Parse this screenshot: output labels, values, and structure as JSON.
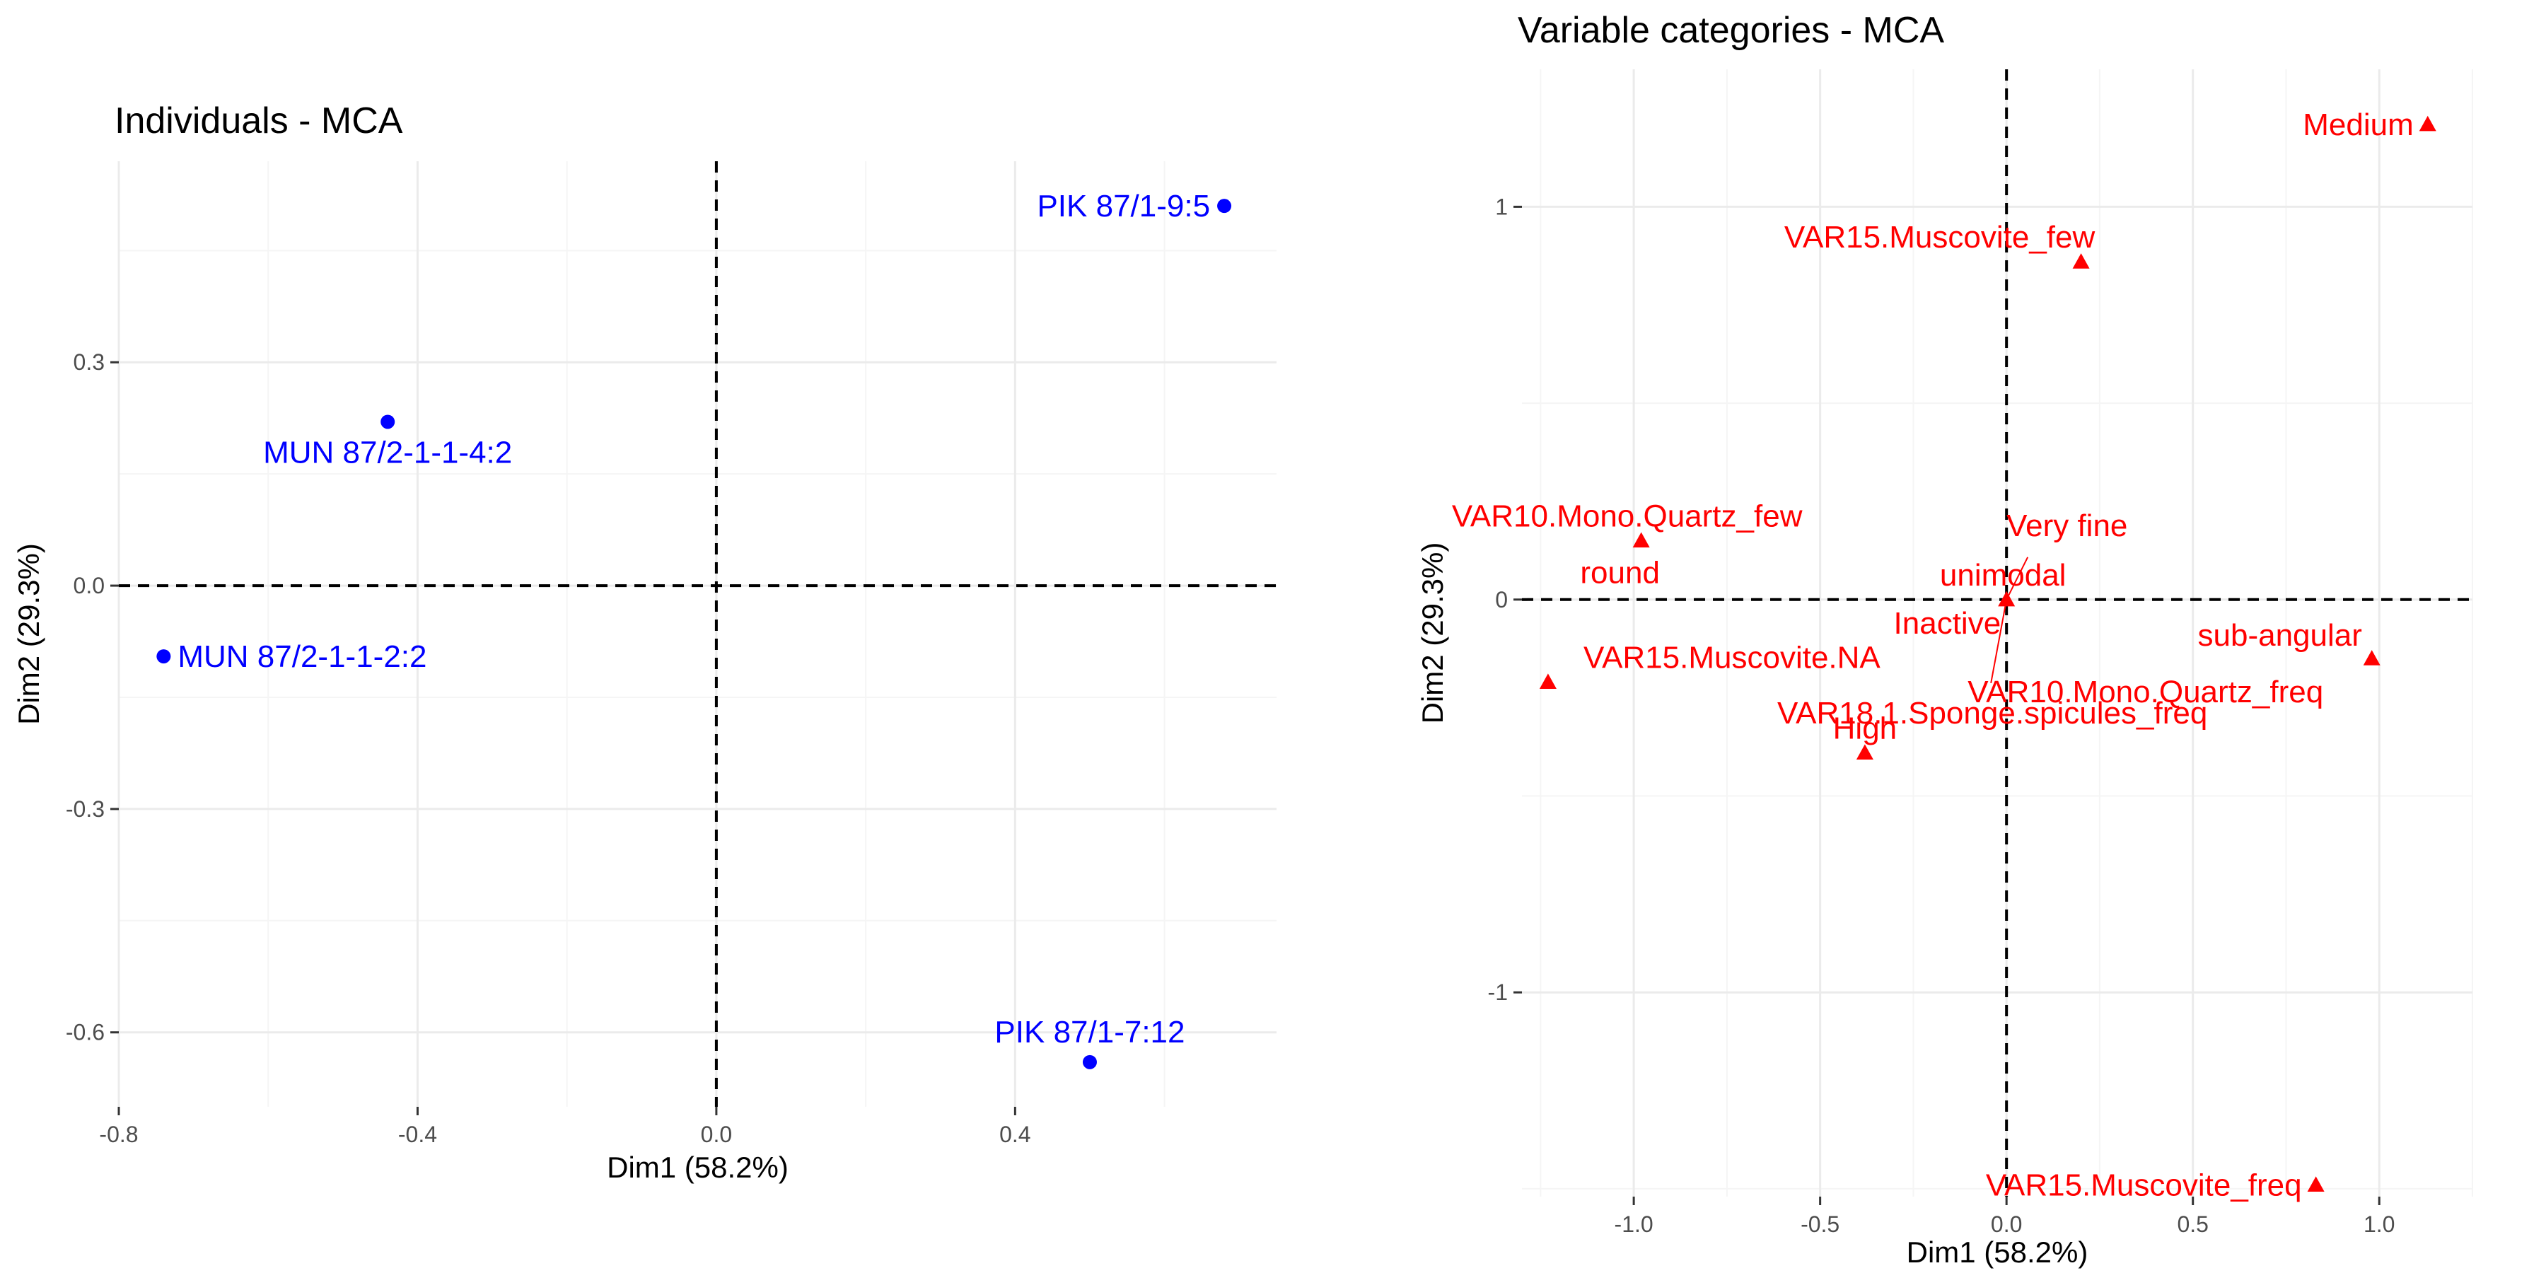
{
  "chart_data": [
    {
      "type": "scatter",
      "title": "Individuals - MCA",
      "xlabel": "Dim1 (58.2%)",
      "ylabel": "Dim2 (29.3%)",
      "xlim": [
        -0.8,
        0.75
      ],
      "ylim": [
        -0.7,
        0.57
      ],
      "xticks": [
        -0.8,
        -0.4,
        0.0,
        0.4
      ],
      "yticks": [
        -0.6,
        -0.3,
        0.0,
        0.3
      ],
      "grid": true,
      "color": "#0000ff",
      "marker": "circle",
      "points": [
        {
          "label": "PIK 87/1-9:5",
          "x": 0.68,
          "y": 0.51,
          "label_pos": "left"
        },
        {
          "label": "MUN 87/2-1-1-4:2",
          "x": -0.44,
          "y": 0.22,
          "label_pos": "below"
        },
        {
          "label": "MUN 87/2-1-1-2:2",
          "x": -0.74,
          "y": -0.095,
          "label_pos": "right"
        },
        {
          "label": "PIK 87/1-7:12",
          "x": 0.5,
          "y": -0.64,
          "label_pos": "above"
        }
      ]
    },
    {
      "type": "scatter",
      "title": "Variable categories - MCA",
      "xlabel": "Dim1 (58.2%)",
      "ylabel": "Dim2 (29.3%)",
      "xlim": [
        -1.3,
        1.25
      ],
      "ylim": [
        -1.52,
        1.35
      ],
      "xticks": [
        -1.0,
        -0.5,
        0.0,
        0.5,
        1.0
      ],
      "yticks": [
        -1,
        0,
        1
      ],
      "grid": true,
      "color": "#ff0000",
      "marker": "triangle",
      "points": [
        {
          "label": "Medium",
          "x": 1.13,
          "y": 1.21,
          "label_pos": "left"
        },
        {
          "label": "VAR15.Muscovite_few",
          "x": 0.2,
          "y": 0.86,
          "label_pos": "above"
        },
        {
          "label": "VAR10.Mono.Quartz_few",
          "x": -0.98,
          "y": 0.15,
          "label_pos": "above"
        },
        {
          "label": "round",
          "x": -0.98,
          "y": 0.15,
          "label_pos": "below"
        },
        {
          "label": "Very fine",
          "x": 0.0,
          "y": 0.0,
          "label_pos": "upper-right"
        },
        {
          "label": "unimodal",
          "x": 0.0,
          "y": 0.0,
          "label_pos": "above"
        },
        {
          "label": "Inactive",
          "x": 0.0,
          "y": 0.0,
          "label_pos": "lower-left"
        },
        {
          "label": "VAR18.1.Sponge.spicules_freq",
          "x": 0.0,
          "y": 0.0,
          "label_pos": "below"
        },
        {
          "label": "sub-angular",
          "x": 0.98,
          "y": -0.15,
          "label_pos": "above"
        },
        {
          "label": "VAR10.Mono.Quartz_freq",
          "x": 0.98,
          "y": -0.15,
          "label_pos": "below"
        },
        {
          "label": "VAR15.Muscovite.NA",
          "x": -1.23,
          "y": -0.21,
          "label_pos": "above"
        },
        {
          "label": "High",
          "x": -0.38,
          "y": -0.39,
          "label_pos": "above"
        },
        {
          "label": "VAR15.Muscovite_freq",
          "x": 0.83,
          "y": -1.49,
          "label_pos": "left"
        }
      ]
    }
  ]
}
